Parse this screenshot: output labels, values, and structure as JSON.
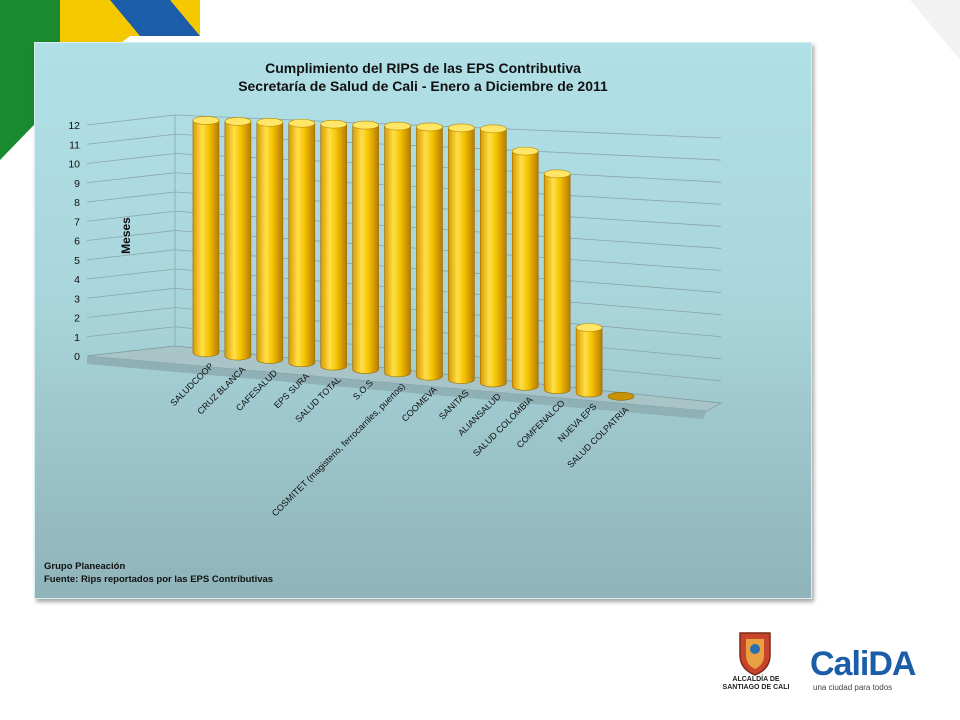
{
  "chart_data": {
    "type": "bar",
    "title": "Cumplimiento del RIPS de las EPS Contributiva",
    "subtitle": "Secretaría de Salud de Cali - Enero a Diciembre de 2011",
    "ylabel": "Meses",
    "xlabel": "",
    "ylim": [
      0,
      12
    ],
    "yticks": [
      "0",
      "1",
      "2",
      "3",
      "4",
      "5",
      "6",
      "7",
      "8",
      "9",
      "10",
      "11",
      "12"
    ],
    "grid": true,
    "bar_color": "#f2c200",
    "categories": [
      "SALUDCOOP",
      "CRUZ BLANCA",
      "CAFESALUD",
      "EPS SURA",
      "SALUD TOTAL",
      "S.O.S",
      "COSMITET (magisterio, ferrocarriles, puertos)",
      "COOMEVA",
      "SANITAS",
      "ALIANSALUD",
      "SALUD COLOMBIA",
      "COMFENALCO",
      "NUEVA EPS",
      "SALUD COLPATRIA"
    ],
    "values": [
      12,
      12,
      12,
      12,
      12,
      12,
      12,
      12,
      12,
      12,
      11,
      10,
      3,
      0
    ]
  },
  "footer": {
    "line1": "Grupo Planeación",
    "line2": "Fuente: Rips reportados por las EPS Contributivas"
  },
  "logos": {
    "alcaldia_line1": "ALCALDÍA DE",
    "alcaldia_line2": "SANTIAGO DE CALI",
    "calida": "CaliDA",
    "calida_tagline": "una ciudad para todos"
  }
}
